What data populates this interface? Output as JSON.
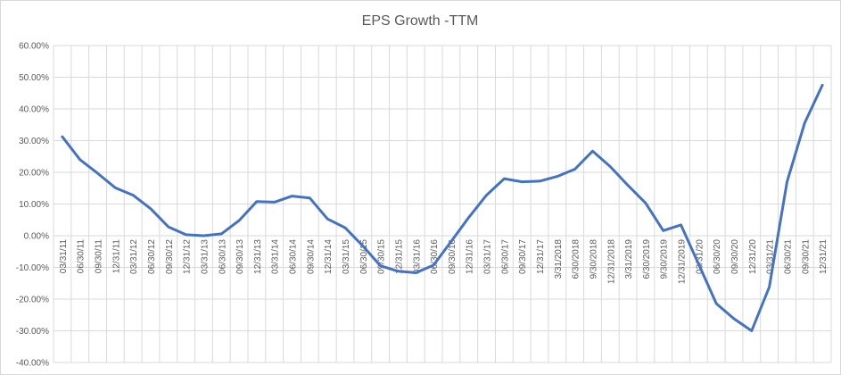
{
  "chart_data": {
    "type": "line",
    "title": "EPS Growth -TTM",
    "xlabel": "",
    "ylabel": "",
    "ylim": [
      -0.4,
      0.6
    ],
    "y_ticks": [
      0.6,
      0.5,
      0.4,
      0.3,
      0.2,
      0.1,
      0.0,
      -0.1,
      -0.2,
      -0.3,
      -0.4
    ],
    "y_tick_labels": [
      "60.00%",
      "50.00%",
      "40.00%",
      "30.00%",
      "20.00%",
      "10.00%",
      "0.00%",
      "-10.00%",
      "-20.00%",
      "-30.00%",
      "-40.00%"
    ],
    "grid": true,
    "legend": "none",
    "series_color": "#4472c4",
    "categories": [
      "03/31/11",
      "06/30/11",
      "09/30/11",
      "12/31/11",
      "03/31/12",
      "06/30/12",
      "09/30/12",
      "12/31/12",
      "03/31/13",
      "06/30/13",
      "09/30/13",
      "12/31/13",
      "03/31/14",
      "06/30/14",
      "09/30/14",
      "12/31/14",
      "03/31/15",
      "06/30/15",
      "09/30/15",
      "12/31/15",
      "03/31/16",
      "06/30/16",
      "09/30/16",
      "12/31/16",
      "03/31/17",
      "06/30/17",
      "09/30/17",
      "12/31/17",
      "3/31/2018",
      "6/30/2018",
      "9/30/2018",
      "12/31/2018",
      "3/31/2019",
      "6/30/2019",
      "9/30/2019",
      "12/31/2019",
      "03/31/20",
      "06/30/20",
      "09/30/20",
      "12/31/20",
      "03/31/21",
      "06/30/21",
      "09/30/21",
      "12/31/21"
    ],
    "series": [
      {
        "values": [
          0.312,
          0.24,
          0.197,
          0.151,
          0.128,
          0.085,
          0.028,
          0.003,
          0.0,
          0.006,
          0.048,
          0.108,
          0.106,
          0.125,
          0.119,
          0.053,
          0.025,
          -0.032,
          -0.095,
          -0.112,
          -0.117,
          -0.093,
          -0.018,
          0.058,
          0.128,
          0.18,
          0.17,
          0.172,
          0.187,
          0.21,
          0.267,
          0.218,
          0.159,
          0.103,
          0.016,
          0.034,
          -0.09,
          -0.214,
          -0.262,
          -0.3,
          -0.162,
          0.17,
          0.356,
          0.475
        ]
      }
    ]
  }
}
